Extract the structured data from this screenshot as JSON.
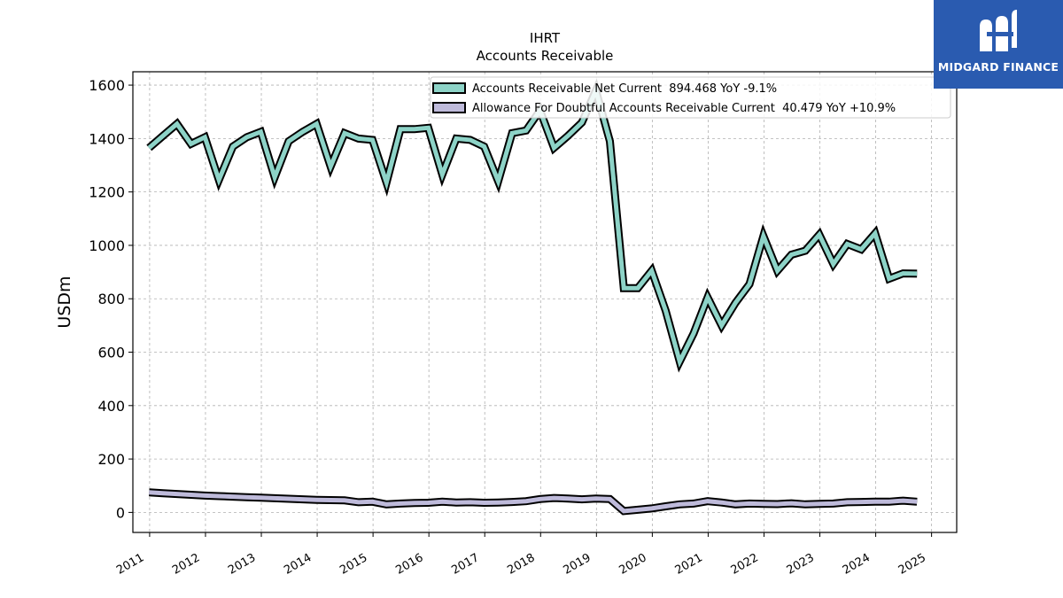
{
  "chart_data": {
    "type": "line",
    "title": "IHRT",
    "subtitle": "Accounts Receivable",
    "ylabel": "USDm",
    "xlabel": "",
    "ylim": [
      -75,
      1650
    ],
    "xlim": [
      2010.7,
      2025.45
    ],
    "yticks": [
      0,
      200,
      400,
      600,
      800,
      1000,
      1200,
      1400,
      1600
    ],
    "xticks": [
      "2011",
      "2012",
      "2013",
      "2014",
      "2015",
      "2016",
      "2017",
      "2018",
      "2019",
      "2020",
      "2021",
      "2022",
      "2023",
      "2024",
      "2025"
    ],
    "grid": true,
    "legend_position": "top-right",
    "series": [
      {
        "name": "Accounts Receivable Net Current  894.468 YoY -9.1%",
        "color": "#8dd3c7",
        "x": [
          2010.99,
          2011.24,
          2011.49,
          2011.74,
          2011.99,
          2012.24,
          2012.49,
          2012.74,
          2012.99,
          2013.24,
          2013.49,
          2013.74,
          2013.99,
          2014.24,
          2014.49,
          2014.74,
          2014.99,
          2015.24,
          2015.49,
          2015.74,
          2015.99,
          2016.24,
          2016.49,
          2016.74,
          2016.99,
          2017.24,
          2017.49,
          2017.74,
          2017.99,
          2018.24,
          2018.49,
          2018.74,
          2018.99,
          2019.24,
          2019.49,
          2019.74,
          2019.99,
          2020.24,
          2020.49,
          2020.74,
          2020.99,
          2021.24,
          2021.49,
          2021.74,
          2021.99,
          2022.24,
          2022.49,
          2022.74,
          2022.99,
          2023.24,
          2023.49,
          2023.74,
          2023.99,
          2024.24,
          2024.49,
          2024.74
        ],
        "values": [
          1365,
          1410,
          1455,
          1380,
          1405,
          1245,
          1370,
          1405,
          1425,
          1255,
          1390,
          1425,
          1455,
          1295,
          1420,
          1400,
          1395,
          1235,
          1435,
          1435,
          1440,
          1265,
          1400,
          1395,
          1370,
          1240,
          1420,
          1430,
          1505,
          1365,
          1410,
          1460,
          1580,
          1390,
          840,
          840,
          905,
          755,
          565,
          670,
          805,
          700,
          785,
          855,
          1035,
          905,
          965,
          980,
          1040,
          930,
          1005,
          985,
          1045,
          875,
          895,
          894
        ]
      },
      {
        "name": "Allowance For Doubtful Accounts Receivable Current  40.479 YoY +10.9%",
        "color": "#bebada",
        "x": [
          2010.99,
          2011.24,
          2011.49,
          2011.74,
          2011.99,
          2012.24,
          2012.49,
          2012.74,
          2012.99,
          2013.24,
          2013.49,
          2013.74,
          2013.99,
          2014.24,
          2014.49,
          2014.74,
          2014.99,
          2015.24,
          2015.49,
          2015.74,
          2015.99,
          2016.24,
          2016.49,
          2016.74,
          2016.99,
          2017.24,
          2017.49,
          2017.74,
          2017.99,
          2018.24,
          2018.49,
          2018.74,
          2018.99,
          2019.24,
          2019.49,
          2019.74,
          2019.99,
          2020.24,
          2020.49,
          2020.74,
          2020.99,
          2021.24,
          2021.49,
          2021.74,
          2021.99,
          2022.24,
          2022.49,
          2022.74,
          2022.99,
          2023.24,
          2023.49,
          2023.74,
          2023.99,
          2024.24,
          2024.49,
          2024.74
        ],
        "values": [
          75,
          72,
          69,
          66,
          63,
          61,
          59,
          57,
          55,
          53,
          51,
          49,
          47,
          46,
          45,
          38,
          40,
          30,
          33,
          35,
          36,
          40,
          37,
          38,
          36,
          37,
          39,
          42,
          50,
          54,
          52,
          49,
          52,
          50,
          5,
          10,
          15,
          23,
          30,
          33,
          42,
          37,
          30,
          33,
          32,
          31,
          34,
          30,
          32,
          33,
          38,
          39,
          40,
          40,
          44,
          40
        ]
      }
    ]
  },
  "logo": {
    "text": "MIDGARD FINANCE"
  }
}
